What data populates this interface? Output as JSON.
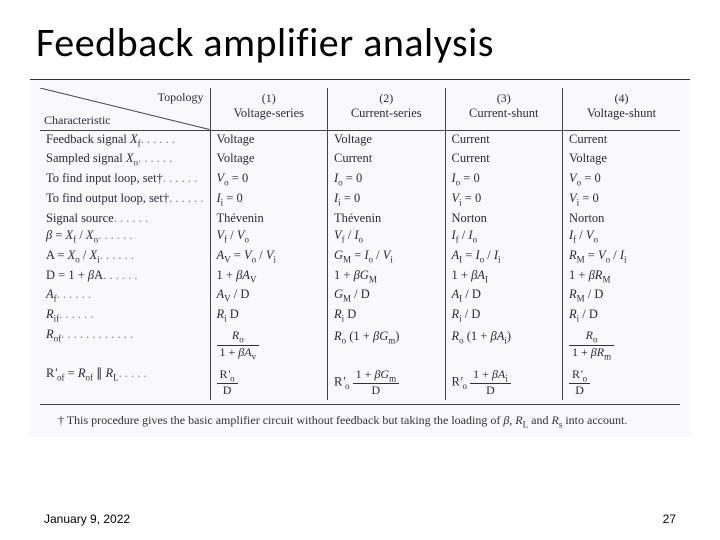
{
  "title": "Feedback amplifier analysis",
  "header": {
    "diag_top": "Topology",
    "diag_bottom": "Characteristic",
    "cols": [
      {
        "num": "(1)",
        "name": "Voltage-series"
      },
      {
        "num": "(2)",
        "name": "Current-series"
      },
      {
        "num": "(3)",
        "name": "Current-shunt"
      },
      {
        "num": "(4)",
        "name": "Voltage-shunt"
      }
    ]
  },
  "rows": [
    {
      "label": "Feedback signal X_f",
      "c": [
        "Voltage",
        "Voltage",
        "Current",
        "Current"
      ]
    },
    {
      "label": "Sampled signal X_o",
      "c": [
        "Voltage",
        "Current",
        "Current",
        "Voltage"
      ]
    },
    {
      "label": "To find input loop, set†",
      "c": [
        "V_o = 0",
        "I_o = 0",
        "I_o = 0",
        "V_o = 0"
      ]
    },
    {
      "label": "To find output loop, set†",
      "c": [
        "I_i = 0",
        "I_i = 0",
        "V_i = 0",
        "V_i = 0"
      ]
    },
    {
      "label": "Signal source",
      "c": [
        "Thévenin",
        "Thévenin",
        "Norton",
        "Norton"
      ]
    },
    {
      "label": "β = X_f / X_o",
      "c": [
        "V_f / V_o",
        "V_f / I_o",
        "I_f / I_o",
        "I_f / V_o"
      ]
    },
    {
      "label": "A = X_o / X_i",
      "c": [
        "A_V = V_o / V_i",
        "G_M = I_o / V_i",
        "A_I = I_o / I_i",
        "R_M = V_o / I_i"
      ]
    },
    {
      "label": "D = 1 + βA",
      "c": [
        "1 + βA_V",
        "1 + βG_M",
        "1 + βA_I",
        "1 + βR_M"
      ]
    },
    {
      "label": "A_f",
      "c": [
        "A_V / D",
        "G_M / D",
        "A_I / D",
        "R_M / D"
      ]
    },
    {
      "label": "R_if",
      "c": [
        "R_i D",
        "R_i D",
        "R_i / D",
        "R_i / D"
      ]
    }
  ],
  "rof_row": {
    "label": "R_of",
    "c": [
      {
        "num": "R_o",
        "den": "1 + βA_v"
      },
      {
        "plain": "R_o (1 + βG_m)"
      },
      {
        "plain": "R_o (1 + βA_i)"
      },
      {
        "num": "R_o",
        "den": "1 + βR_m"
      }
    ]
  },
  "rofp_row": {
    "label": "R'_of = R_of ∥ R_L",
    "c": [
      {
        "num": "R'_o",
        "den": "D"
      },
      {
        "pre": "R'_o ",
        "num": "1 + βG_m",
        "den": "D"
      },
      {
        "pre": "R'_o ",
        "num": "1 + βA_i",
        "den": "D"
      },
      {
        "num": "R'_o",
        "den": "D"
      }
    ]
  },
  "footnote": "† This procedure gives the basic amplifier circuit without feedback but taking the loading of β, R_L and R_s into account.",
  "footer": {
    "date": "January 9, 2022",
    "page": "27"
  },
  "style": {
    "bg": "#ffffff",
    "scan_bg": "#f9f9fb",
    "text": "#2a2a3a",
    "rule": "#444444",
    "title_fontsize": 40,
    "body_fontsize": 12.5
  }
}
